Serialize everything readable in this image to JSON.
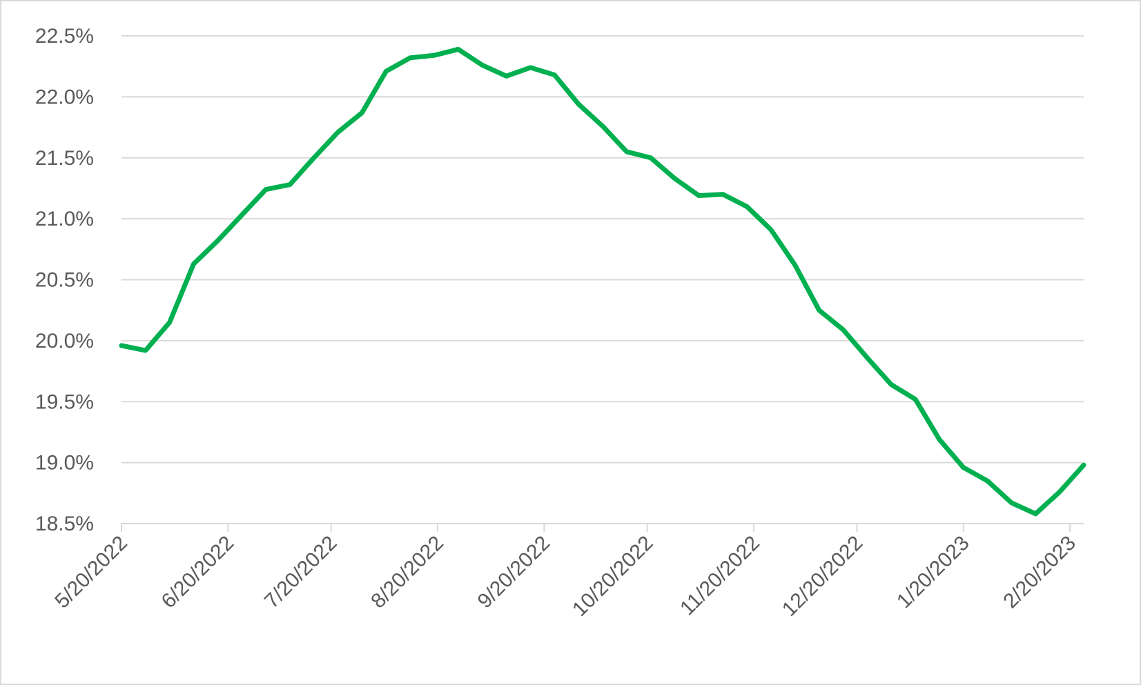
{
  "chart_data": {
    "type": "line",
    "x": [
      "5/20/2022",
      "5/27/2022",
      "6/3/2022",
      "6/10/2022",
      "6/17/2022",
      "6/24/2022",
      "7/1/2022",
      "7/8/2022",
      "7/15/2022",
      "7/22/2022",
      "7/29/2022",
      "8/5/2022",
      "8/12/2022",
      "8/19/2022",
      "8/26/2022",
      "9/2/2022",
      "9/9/2022",
      "9/16/2022",
      "9/23/2022",
      "9/30/2022",
      "10/7/2022",
      "10/14/2022",
      "10/21/2022",
      "10/28/2022",
      "11/4/2022",
      "11/11/2022",
      "11/18/2022",
      "11/25/2022",
      "12/2/2022",
      "12/9/2022",
      "12/16/2022",
      "12/23/2022",
      "12/30/2022",
      "1/6/2023",
      "1/13/2023",
      "1/20/2023",
      "1/27/2023",
      "2/3/2023",
      "2/10/2023",
      "2/17/2023",
      "2/24/2023"
    ],
    "values": [
      19.96,
      19.92,
      20.15,
      20.63,
      20.82,
      21.03,
      21.24,
      21.28,
      21.5,
      21.71,
      21.87,
      22.21,
      22.32,
      22.34,
      22.39,
      22.26,
      22.17,
      22.24,
      22.18,
      21.94,
      21.76,
      21.55,
      21.5,
      21.33,
      21.19,
      21.2,
      21.1,
      20.91,
      20.62,
      20.25,
      20.09,
      19.86,
      19.64,
      19.52,
      19.19,
      18.96,
      18.85,
      18.67,
      18.58,
      18.76,
      18.98
    ],
    "color": "#00b050",
    "xlim": [
      "5/20/2022",
      "2/24/2023"
    ],
    "xticks": [
      "5/20/2022",
      "6/20/2022",
      "7/20/2022",
      "8/20/2022",
      "9/20/2022",
      "10/20/2022",
      "11/20/2022",
      "12/20/2022",
      "1/20/2023",
      "2/20/2023"
    ],
    "ylim": [
      18.5,
      22.5
    ],
    "yticks": [
      {
        "value": 18.5,
        "label": "18.5%"
      },
      {
        "value": 19.0,
        "label": "19.0%"
      },
      {
        "value": 19.5,
        "label": "19.5%"
      },
      {
        "value": 20.0,
        "label": "20.0%"
      },
      {
        "value": 20.5,
        "label": "20.5%"
      },
      {
        "value": 21.0,
        "label": "21.0%"
      },
      {
        "value": 21.5,
        "label": "21.5%"
      },
      {
        "value": 22.0,
        "label": "22.0%"
      },
      {
        "value": 22.5,
        "label": "22.5%"
      }
    ],
    "grid": true
  }
}
